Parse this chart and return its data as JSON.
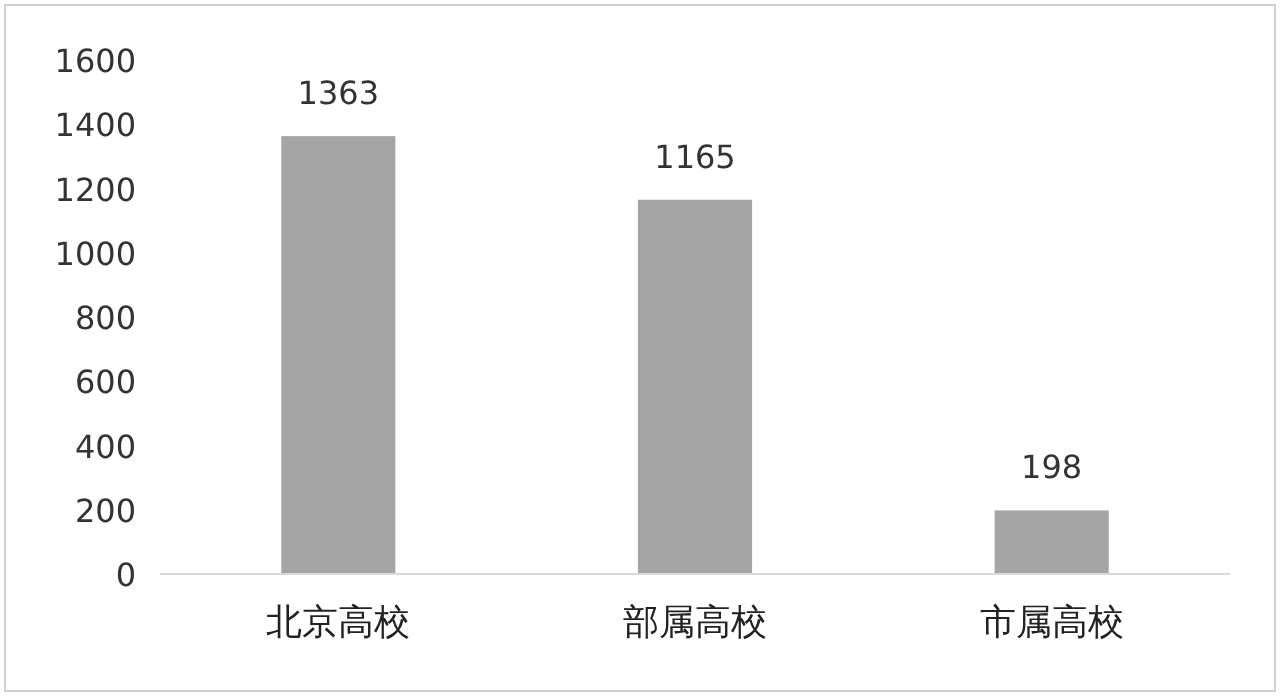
{
  "chart_data": {
    "type": "bar",
    "categories": [
      "北京高校",
      "部属高校",
      "市属高校"
    ],
    "values": [
      1363,
      1165,
      198
    ],
    "color": "#a5a5a5",
    "ylim": [
      0,
      1600
    ],
    "yticks": [
      0,
      200,
      400,
      600,
      800,
      1000,
      1200,
      1400,
      1600
    ],
    "grid": false,
    "data_labels": true
  }
}
